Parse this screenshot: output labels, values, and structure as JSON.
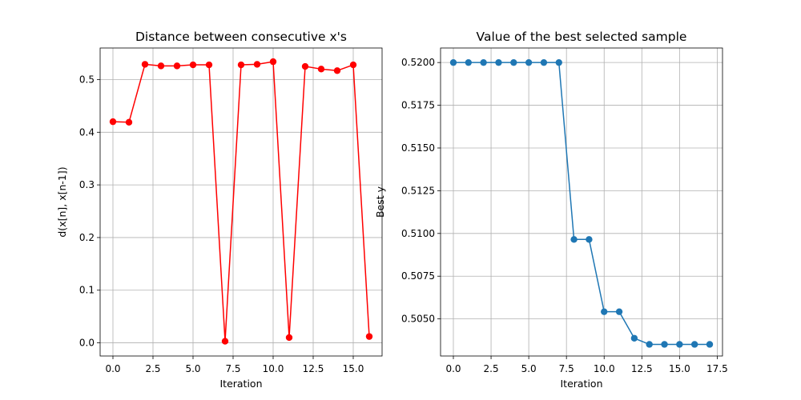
{
  "chart_data": [
    {
      "type": "line",
      "title": "Distance between consecutive x's",
      "xlabel": "Iteration",
      "ylabel": "d(x[n], x[n-1])",
      "xlim": [
        -0.8,
        16.8
      ],
      "ylim": [
        -0.025,
        0.56
      ],
      "xticks": [
        0,
        2.5,
        5,
        7.5,
        10,
        12.5,
        15
      ],
      "xtick_labels": [
        "0.0",
        "2.5",
        "5.0",
        "7.5",
        "10.0",
        "12.5",
        "15.0"
      ],
      "yticks": [
        0,
        0.1,
        0.2,
        0.3,
        0.4,
        0.5
      ],
      "ytick_labels": [
        "0.0",
        "0.1",
        "0.2",
        "0.3",
        "0.4",
        "0.5"
      ],
      "grid": true,
      "series": [
        {
          "color": "#ff0000",
          "marker": "circle",
          "x": [
            0,
            1,
            2,
            3,
            4,
            5,
            6,
            7,
            8,
            9,
            10,
            11,
            12,
            13,
            14,
            15,
            16
          ],
          "y": [
            0.42,
            0.419,
            0.529,
            0.526,
            0.526,
            0.528,
            0.528,
            0.003,
            0.528,
            0.529,
            0.534,
            0.01,
            0.525,
            0.52,
            0.517,
            0.528,
            0.012
          ]
        }
      ]
    },
    {
      "type": "line",
      "title": "Value of the best selected sample",
      "xlabel": "Iteration",
      "ylabel": "Best y",
      "xlim": [
        -0.85,
        17.85
      ],
      "ylim": [
        0.50283,
        0.52085
      ],
      "xticks": [
        0,
        2.5,
        5,
        7.5,
        10,
        12.5,
        15,
        17.5
      ],
      "xtick_labels": [
        "0.0",
        "2.5",
        "5.0",
        "7.5",
        "10.0",
        "12.5",
        "15.0",
        "17.5"
      ],
      "yticks": [
        0.505,
        0.5075,
        0.51,
        0.5125,
        0.515,
        0.5175,
        0.52
      ],
      "ytick_labels": [
        "0.5050",
        "0.5075",
        "0.5100",
        "0.5125",
        "0.5150",
        "0.5175",
        "0.5200"
      ],
      "grid": true,
      "series": [
        {
          "color": "#1f77b4",
          "marker": "circle",
          "x": [
            0,
            1,
            2,
            3,
            4,
            5,
            6,
            7,
            8,
            9,
            10,
            11,
            12,
            13,
            14,
            15,
            16,
            17
          ],
          "y": [
            0.52,
            0.52,
            0.52,
            0.52,
            0.52,
            0.52,
            0.52,
            0.52,
            0.50965,
            0.50965,
            0.50542,
            0.50542,
            0.50387,
            0.50351,
            0.50351,
            0.50351,
            0.50351,
            0.50351
          ]
        }
      ]
    }
  ]
}
